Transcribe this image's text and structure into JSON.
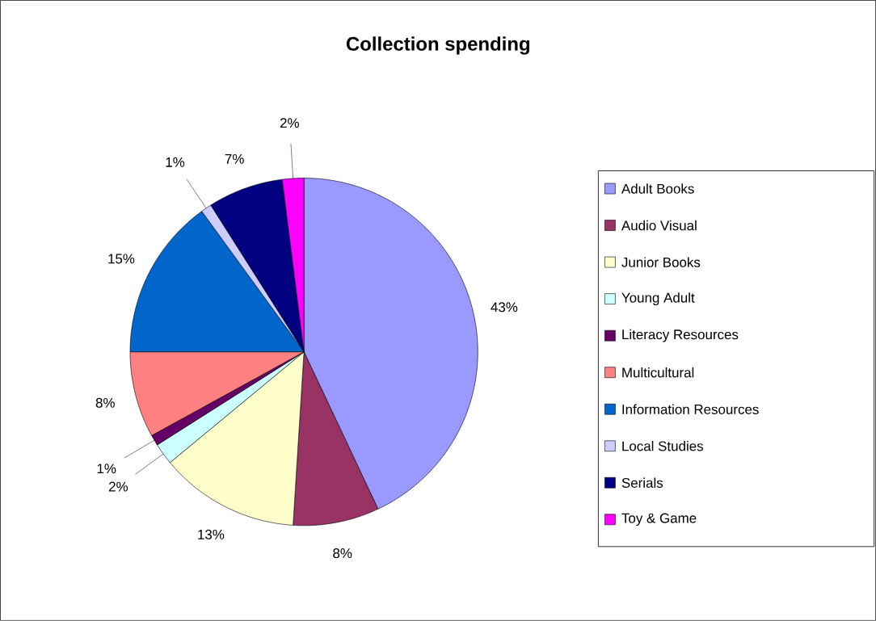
{
  "chart_data": {
    "type": "pie",
    "title": "Collection spending",
    "categories": [
      "Adult Books",
      "Audio Visual",
      "Junior Books",
      "Young Adult",
      "Literacy Resources",
      "Multicultural",
      "Information Resources",
      "Local Studies",
      "Serials",
      "Toy & Game"
    ],
    "values": [
      43,
      8,
      13,
      2,
      1,
      8,
      15,
      1,
      7,
      2
    ],
    "value_labels": [
      "43%",
      "8%",
      "13%",
      "2%",
      "1%",
      "8%",
      "15%",
      "1%",
      "7%",
      "2%"
    ],
    "colors": [
      "#9999ff",
      "#993366",
      "#ffffcc",
      "#ccffff",
      "#660066",
      "#ff8080",
      "#0066cc",
      "#ccccff",
      "#000080",
      "#ff00ff"
    ],
    "legend": "right"
  }
}
